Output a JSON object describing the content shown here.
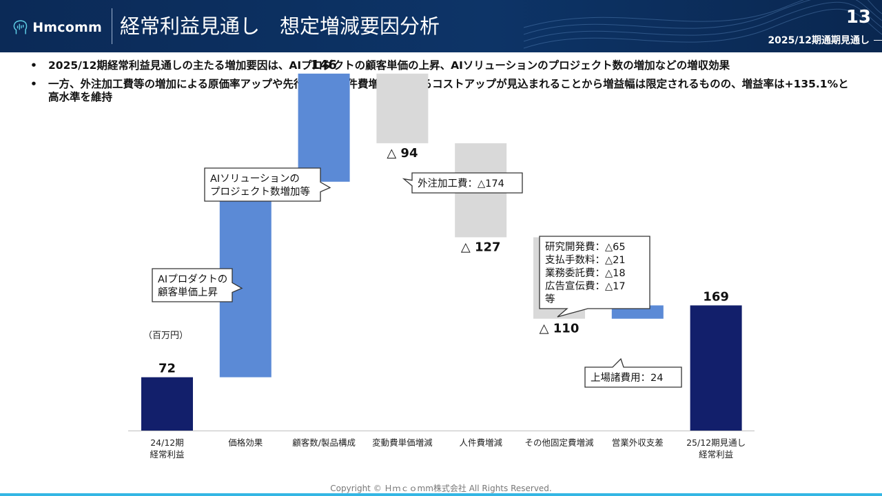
{
  "header": {
    "logo_text": "Hmcomm",
    "title": "経常利益見通し　想定増減要因分析",
    "page_number": "13",
    "period": "2025/12期通期見通し"
  },
  "bullets": [
    "2025/12期経常利益見通しの主たる増加要因は、AIプロダクトの顧客単価の上昇、AIソリューションのプロジェクト数の増加などの増収効果",
    "一方、外注加工費等の増加による原価率アップや先行投資の人件費増などによるコストアップが見込まれることから増益幅は限定されるものの、増益率は+135.1%と高水準を維持"
  ],
  "bullet_mark": "•",
  "chart_data": {
    "type": "waterfall",
    "unit_label": "（百万円）",
    "ylim": [
      0,
      330
    ],
    "categories": [
      "24/12期\n経常利益",
      "価格効果",
      "顧客数/製品構成",
      "変動費単価増減",
      "人件費増減",
      "その他固定費増減",
      "営業外収支差",
      "25/12期見通し\n経常利益"
    ],
    "steps": [
      {
        "kind": "total",
        "value": 72,
        "label": "72"
      },
      {
        "kind": "increase",
        "value": 264,
        "label": "264"
      },
      {
        "kind": "increase",
        "value": 146,
        "label": "146"
      },
      {
        "kind": "decrease",
        "value": -94,
        "label": "△ 94"
      },
      {
        "kind": "decrease",
        "value": -127,
        "label": "△ 127"
      },
      {
        "kind": "decrease",
        "value": -110,
        "label": "△ 110"
      },
      {
        "kind": "increase",
        "value": 18,
        "label": "18"
      },
      {
        "kind": "total",
        "value": 169,
        "label": "169"
      }
    ],
    "colors": {
      "total": "#121f6b",
      "increase": "#5b8ad6",
      "decrease": "#d9d9d9"
    },
    "callouts": [
      {
        "target": 1,
        "lines": [
          "AIプロダクトの",
          "顧客単価上昇"
        ]
      },
      {
        "target": 2,
        "lines": [
          "AIソリューションの",
          "プロジェクト数増加等"
        ]
      },
      {
        "target": 3,
        "lines": [
          "外注加工費：△174"
        ]
      },
      {
        "target": 5,
        "lines": [
          "研究開発費：△65",
          "支払手数料：△21",
          "業務委託費：△18",
          "広告宣伝費：△17",
          "等"
        ]
      },
      {
        "target": 6,
        "lines": [
          "上場諸費用：24"
        ]
      }
    ]
  },
  "footer": {
    "copyright": "Copyright © Ｈｍｃｏmm株式会社 All Rights Reserved."
  }
}
